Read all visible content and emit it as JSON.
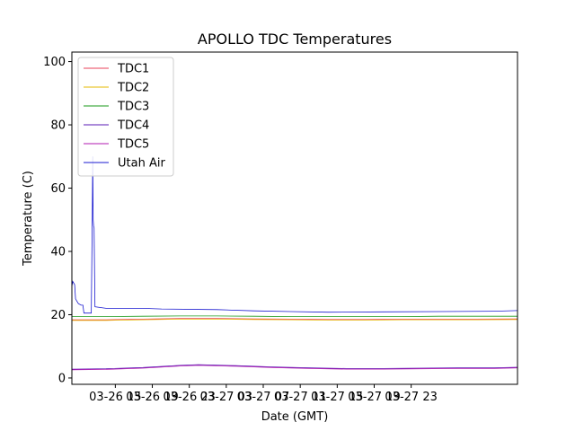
{
  "chart_data": {
    "type": "line",
    "title": "APOLLO TDC Temperatures",
    "xlabel": "Date (GMT)",
    "ylabel": "Temperature (C)",
    "xlim_hours": [
      10.3,
      58.5
    ],
    "ylim": [
      -2,
      103
    ],
    "x_ticks": [
      {
        "hour": 15,
        "label": "03-26 15"
      },
      {
        "hour": 19,
        "label": "03-26 19"
      },
      {
        "hour": 23,
        "label": "03-26 23"
      },
      {
        "hour": 27,
        "label": "03-27 03"
      },
      {
        "hour": 31,
        "label": "03-27 07"
      },
      {
        "hour": 35,
        "label": "03-27 11"
      },
      {
        "hour": 39,
        "label": "03-27 15"
      },
      {
        "hour": 43,
        "label": "03-27 19"
      },
      {
        "hour": 47,
        "label": "03-27 23"
      }
    ],
    "y_ticks": [
      0,
      20,
      40,
      60,
      80,
      100
    ],
    "legend_position": "upper-left",
    "series": [
      {
        "name": "TDC1",
        "color": "#e8405a",
        "x": [
          10.3,
          14,
          18,
          22,
          26,
          30,
          34,
          38,
          42,
          46,
          50,
          54,
          58.5
        ],
        "y": [
          18.4,
          18.4,
          18.6,
          18.8,
          18.8,
          18.7,
          18.6,
          18.5,
          18.5,
          18.6,
          18.6,
          18.6,
          18.7
        ]
      },
      {
        "name": "TDC2",
        "color": "#e6b800",
        "x": [
          10.3,
          14,
          18,
          22,
          26,
          30,
          34,
          38,
          42,
          46,
          50,
          54,
          58.5
        ],
        "y": [
          18.2,
          18.2,
          18.4,
          18.6,
          18.6,
          18.5,
          18.4,
          18.3,
          18.3,
          18.4,
          18.4,
          18.4,
          18.5
        ]
      },
      {
        "name": "TDC3",
        "color": "#1a9a1a",
        "x": [
          10.3,
          14,
          18,
          22,
          26,
          30,
          34,
          38,
          42,
          46,
          50,
          54,
          58.5
        ],
        "y": [
          19.4,
          19.4,
          19.5,
          19.6,
          19.6,
          19.5,
          19.4,
          19.4,
          19.4,
          19.4,
          19.5,
          19.5,
          19.5
        ]
      },
      {
        "name": "TDC4",
        "color": "#5a1ab4",
        "x": [
          10.3,
          14,
          18,
          22,
          24,
          28,
          32,
          36,
          40,
          44,
          48,
          52,
          56,
          58.5
        ],
        "y": [
          2.8,
          2.9,
          3.3,
          4.0,
          4.2,
          3.9,
          3.5,
          3.2,
          3.0,
          3.0,
          3.1,
          3.2,
          3.2,
          3.4
        ]
      },
      {
        "name": "TDC5",
        "color": "#b01ab0",
        "x": [
          10.3,
          14,
          18,
          22,
          24,
          28,
          32,
          36,
          40,
          44,
          48,
          52,
          56,
          58.5
        ],
        "y": [
          2.6,
          2.7,
          3.1,
          3.8,
          4.0,
          3.7,
          3.3,
          3.0,
          2.8,
          2.8,
          2.9,
          3.0,
          3.0,
          3.2
        ]
      },
      {
        "name": "Utah Air",
        "color": "#1a1ad0",
        "x": [
          10.3,
          10.4,
          10.6,
          10.7,
          11,
          11.3,
          11.5,
          11.6,
          12.4,
          12.5,
          12.55,
          12.6,
          12.65,
          12.7,
          12.8,
          14,
          18,
          20,
          26,
          30,
          34,
          38,
          44,
          50,
          56,
          58.5
        ],
        "y": [
          29,
          30.5,
          29.5,
          25,
          23.5,
          23,
          23,
          20.5,
          20.5,
          48,
          70,
          50,
          48,
          47.5,
          22.5,
          22,
          22,
          21.8,
          21.6,
          21.2,
          21.0,
          20.8,
          20.9,
          21.0,
          21.1,
          21.3
        ]
      }
    ]
  }
}
